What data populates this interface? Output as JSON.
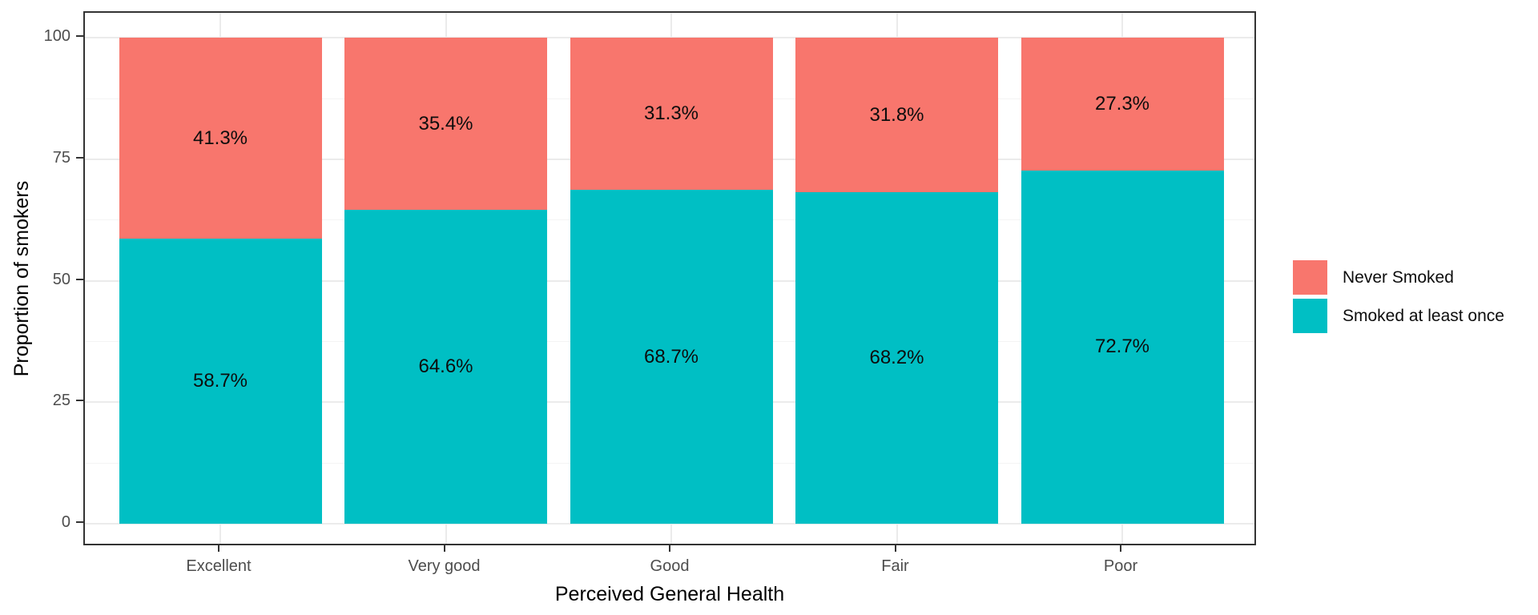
{
  "chart_data": {
    "type": "bar",
    "subtype": "stacked-percentage",
    "title": "",
    "xlabel": "Perceived General Health",
    "ylabel": "Proportion of smokers",
    "categories": [
      "Excellent",
      "Very good",
      "Good",
      "Fair",
      "Poor"
    ],
    "series": [
      {
        "name": "Never Smoked",
        "color": "#F8766D",
        "position": "top",
        "values": [
          41.3,
          35.4,
          31.3,
          31.8,
          27.3
        ],
        "labels": [
          "41.3%",
          "35.4%",
          "31.3%",
          "31.8%",
          "27.3%"
        ]
      },
      {
        "name": "Smoked at least once",
        "color": "#00BFC4",
        "position": "bottom",
        "values": [
          58.7,
          64.6,
          68.7,
          68.2,
          72.7
        ],
        "labels": [
          "58.7%",
          "64.6%",
          "68.7%",
          "68.2%",
          "72.7%"
        ]
      }
    ],
    "legend": {
      "position": "right",
      "entries": [
        {
          "label": "Never Smoked",
          "color": "#F8766D"
        },
        {
          "label": "Smoked at least once",
          "color": "#00BFC4"
        }
      ]
    },
    "y_axis": {
      "ticks": [
        0,
        25,
        50,
        75,
        100
      ],
      "tick_labels": [
        "0",
        "25",
        "50",
        "75",
        "100"
      ],
      "minor_gridlines": [
        12.5,
        37.5,
        62.5,
        87.5
      ],
      "ylim": [
        0,
        100
      ]
    },
    "style": {
      "grid": true,
      "panel_border_color": "#333333",
      "major_grid_color": "#EBEBEB",
      "minor_grid_color": "#F4F4F4",
      "axis_text_color": "#4D4D4D",
      "background": "#ffffff"
    }
  }
}
